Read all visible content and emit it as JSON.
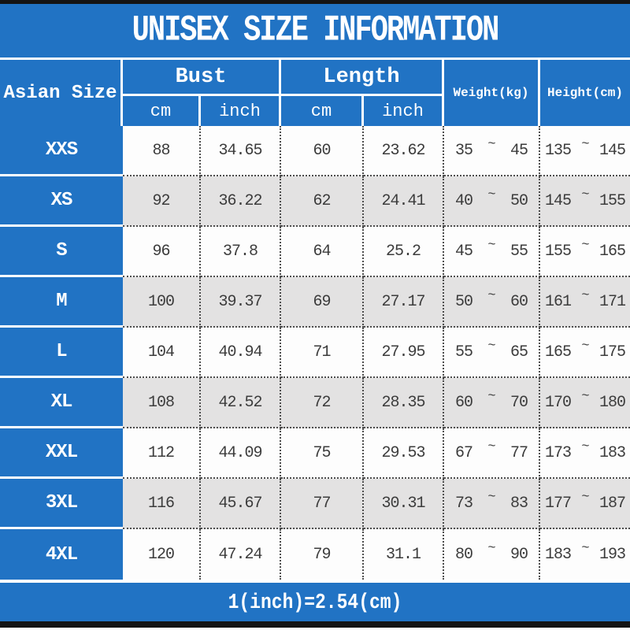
{
  "title": "UNISEX SIZE INFORMATION",
  "colors": {
    "accent_blue": "#2173c4",
    "alt_row_gray": "#e3e2e2",
    "row_white": "#fdfdfd",
    "frame_bar_black": "#141414",
    "cell_text": "#3c3c3c"
  },
  "table": {
    "corner_header": "Asian Size",
    "group_headers": [
      {
        "label": "Bust",
        "sub": [
          "cm",
          "inch"
        ]
      },
      {
        "label": "Length",
        "sub": [
          "cm",
          "inch"
        ]
      }
    ],
    "span_headers": [
      {
        "label": "Weight(kg)"
      },
      {
        "label": "Height(cm)"
      }
    ],
    "tilde": "~",
    "rows": [
      {
        "size": "XXS",
        "bust_cm": "88",
        "bust_inch": "34.65",
        "length_cm": "60",
        "length_inch": "23.62",
        "weight": {
          "min": "35",
          "max": "45"
        },
        "height": {
          "min": "135",
          "max": "145"
        }
      },
      {
        "size": "XS",
        "bust_cm": "92",
        "bust_inch": "36.22",
        "length_cm": "62",
        "length_inch": "24.41",
        "weight": {
          "min": "40",
          "max": "50"
        },
        "height": {
          "min": "145",
          "max": "155"
        }
      },
      {
        "size": "S",
        "bust_cm": "96",
        "bust_inch": "37.8",
        "length_cm": "64",
        "length_inch": "25.2",
        "weight": {
          "min": "45",
          "max": "55"
        },
        "height": {
          "min": "155",
          "max": "165"
        }
      },
      {
        "size": "M",
        "bust_cm": "100",
        "bust_inch": "39.37",
        "length_cm": "69",
        "length_inch": "27.17",
        "weight": {
          "min": "50",
          "max": "60"
        },
        "height": {
          "min": "161",
          "max": "171"
        }
      },
      {
        "size": "L",
        "bust_cm": "104",
        "bust_inch": "40.94",
        "length_cm": "71",
        "length_inch": "27.95",
        "weight": {
          "min": "55",
          "max": "65"
        },
        "height": {
          "min": "165",
          "max": "175"
        }
      },
      {
        "size": "XL",
        "bust_cm": "108",
        "bust_inch": "42.52",
        "length_cm": "72",
        "length_inch": "28.35",
        "weight": {
          "min": "60",
          "max": "70"
        },
        "height": {
          "min": "170",
          "max": "180"
        }
      },
      {
        "size": "XXL",
        "bust_cm": "112",
        "bust_inch": "44.09",
        "length_cm": "75",
        "length_inch": "29.53",
        "weight": {
          "min": "67",
          "max": "77"
        },
        "height": {
          "min": "173",
          "max": "183"
        }
      },
      {
        "size": "3XL",
        "bust_cm": "116",
        "bust_inch": "45.67",
        "length_cm": "77",
        "length_inch": "30.31",
        "weight": {
          "min": "73",
          "max": "83"
        },
        "height": {
          "min": "177",
          "max": "187"
        }
      },
      {
        "size": "4XL",
        "bust_cm": "120",
        "bust_inch": "47.24",
        "length_cm": "79",
        "length_inch": "31.1",
        "weight": {
          "min": "80",
          "max": "90"
        },
        "height": {
          "min": "183",
          "max": "193"
        }
      }
    ]
  },
  "footer": {
    "note": "1(inch)=2.54(cm)"
  }
}
